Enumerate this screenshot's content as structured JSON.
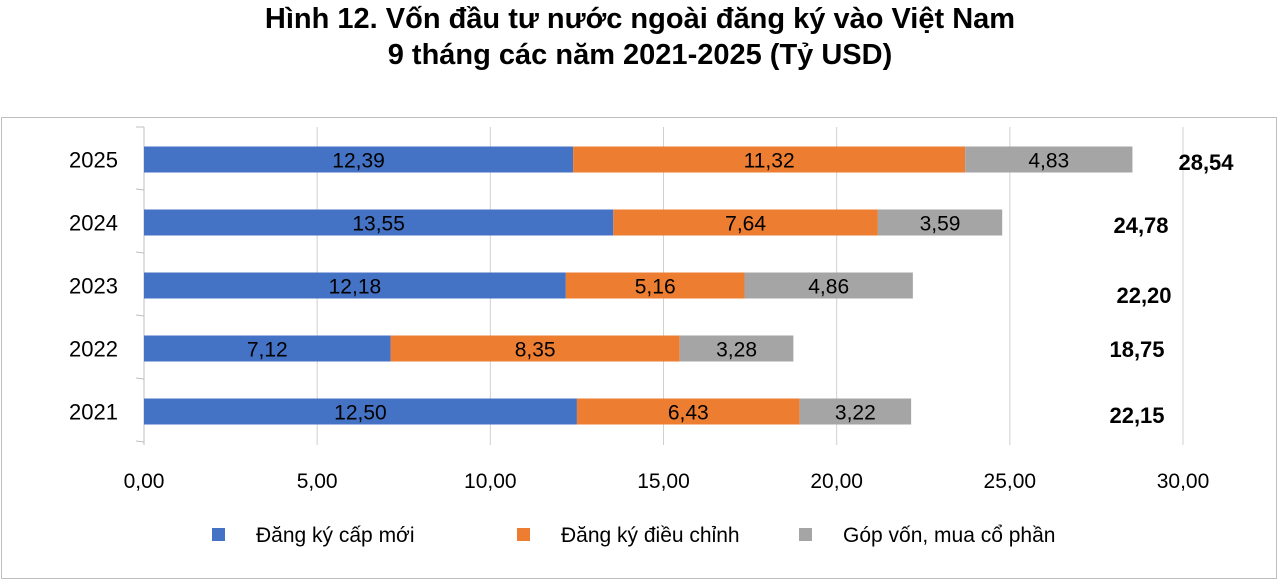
{
  "chart_data": {
    "type": "bar",
    "orientation": "horizontal",
    "stacked": true,
    "title": "Hình 12. Vốn đầu tư nước ngoài đăng ký vào Việt Nam",
    "subtitle": "9 tháng các năm 2021-2025 (Tỷ USD)",
    "categories": [
      "2025",
      "2024",
      "2023",
      "2022",
      "2021"
    ],
    "series": [
      {
        "name": "Đăng ký cấp mới",
        "color": "#4472c4",
        "values": [
          12.39,
          13.55,
          12.18,
          7.12,
          12.5
        ],
        "labels": [
          "12,39",
          "13,55",
          "12,18",
          "7,12",
          "12,50"
        ]
      },
      {
        "name": "Đăng ký điều chỉnh",
        "color": "#ed7d31",
        "values": [
          11.32,
          7.64,
          5.16,
          8.35,
          6.43
        ],
        "labels": [
          "11,32",
          "7,64",
          "5,16",
          "8,35",
          "6,43"
        ]
      },
      {
        "name": "Góp vốn, mua cổ phần",
        "color": "#a5a5a5",
        "values": [
          4.83,
          3.59,
          4.86,
          3.28,
          3.22
        ],
        "labels": [
          "4,83",
          "3,59",
          "4,86",
          "3,28",
          "3,22"
        ]
      }
    ],
    "totals": [
      "28,54",
      "24,78",
      "22,20",
      "18,75",
      "22,15"
    ],
    "xlim": [
      0,
      30
    ],
    "xticks": [
      "0,00",
      "5,00",
      "10,00",
      "15,00",
      "20,00",
      "25,00",
      "30,00"
    ],
    "grid": true,
    "legend": "bottom"
  }
}
